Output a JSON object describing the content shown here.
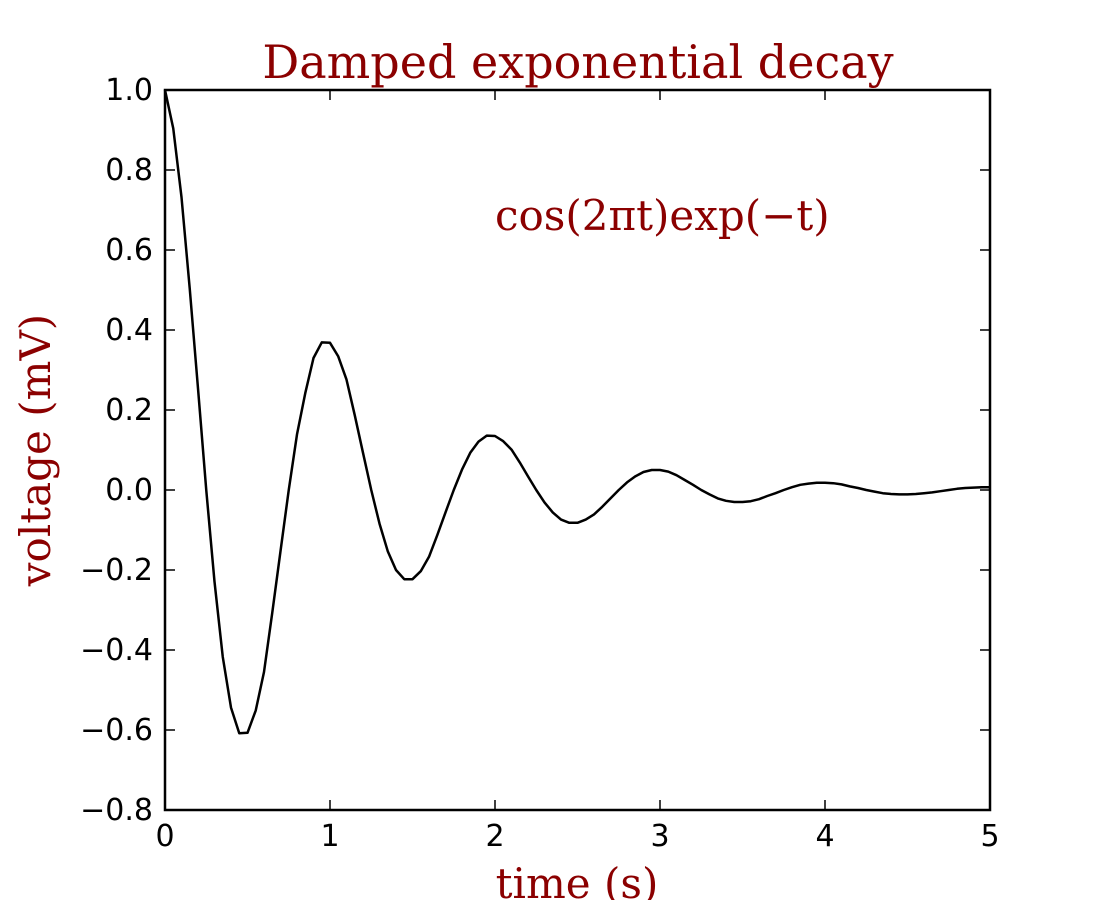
{
  "chart_data": {
    "type": "line",
    "title": "Damped exponential decay",
    "xlabel": "time (s)",
    "ylabel": "voltage (mV)",
    "xlim": [
      0,
      5
    ],
    "ylim": [
      -0.8,
      1.0
    ],
    "grid": false,
    "xticks": [
      0,
      1,
      2,
      3,
      4,
      5
    ],
    "xtick_labels": [
      "0",
      "1",
      "2",
      "3",
      "4",
      "5"
    ],
    "yticks": [
      -0.8,
      -0.6,
      -0.4,
      -0.2,
      0.0,
      0.2,
      0.4,
      0.6,
      0.8,
      1.0
    ],
    "ytick_labels": [
      "−0.8",
      "−0.6",
      "−0.4",
      "−0.2",
      "0.0",
      "0.2",
      "0.4",
      "0.6",
      "0.8",
      "1.0"
    ],
    "annotation": {
      "text": "cos(2πt)exp(−t)",
      "x": 2.0,
      "y": 0.65
    },
    "series": [
      {
        "color": "#000000",
        "x": [
          0,
          0.05,
          0.1,
          0.15,
          0.2,
          0.25,
          0.3,
          0.35,
          0.4,
          0.45,
          0.5,
          0.55,
          0.6,
          0.65,
          0.7,
          0.75,
          0.8,
          0.85,
          0.9,
          0.95,
          1.0,
          1.05,
          1.1,
          1.15,
          1.2,
          1.25,
          1.3,
          1.35,
          1.4,
          1.45,
          1.5,
          1.55,
          1.6,
          1.65,
          1.7,
          1.75,
          1.8,
          1.85,
          1.9,
          1.95,
          2.0,
          2.05,
          2.1,
          2.15,
          2.2,
          2.25,
          2.3,
          2.35,
          2.4,
          2.45,
          2.5,
          2.55,
          2.6,
          2.65,
          2.7,
          2.75,
          2.8,
          2.85,
          2.9,
          2.95,
          3.0,
          3.05,
          3.1,
          3.15,
          3.2,
          3.25,
          3.3,
          3.35,
          3.4,
          3.45,
          3.5,
          3.55,
          3.6,
          3.65,
          3.7,
          3.75,
          3.8,
          3.85,
          3.9,
          3.95,
          4.0,
          4.05,
          4.1,
          4.15,
          4.2,
          4.25,
          4.3,
          4.35,
          4.4,
          4.45,
          4.5,
          4.55,
          4.6,
          4.65,
          4.7,
          4.75,
          4.8,
          4.85,
          4.9,
          4.95,
          5.0
        ],
        "y": [
          1.0,
          0.904,
          0.732,
          0.503,
          0.254,
          0.0,
          -0.229,
          -0.417,
          -0.544,
          -0.608,
          -0.607,
          -0.551,
          -0.455,
          -0.307,
          -0.153,
          0.0,
          0.139,
          0.242,
          0.33,
          0.369,
          0.368,
          0.334,
          0.276,
          0.187,
          0.093,
          0.0,
          -0.084,
          -0.153,
          -0.2,
          -0.223,
          -0.223,
          -0.203,
          -0.167,
          -0.113,
          -0.056,
          0.0,
          0.051,
          0.093,
          0.121,
          0.136,
          0.135,
          0.122,
          0.101,
          0.069,
          0.034,
          0.0,
          -0.031,
          -0.056,
          -0.074,
          -0.082,
          -0.082,
          -0.074,
          -0.061,
          -0.042,
          -0.021,
          0.0,
          0.019,
          0.034,
          0.045,
          0.05,
          0.05,
          0.046,
          0.037,
          0.025,
          0.013,
          0.0,
          -0.011,
          -0.021,
          -0.027,
          -0.03,
          -0.03,
          -0.028,
          -0.023,
          -0.015,
          -0.008,
          0.0,
          0.007,
          0.013,
          0.016,
          0.018,
          0.018,
          0.017,
          0.014,
          0.009,
          0.005,
          0.0,
          -0.004,
          -0.008,
          -0.01,
          -0.011,
          -0.011,
          -0.01,
          -0.008,
          -0.006,
          -0.003,
          0.0,
          0.003,
          0.005,
          0.006,
          0.007,
          0.007
        ]
      }
    ]
  }
}
